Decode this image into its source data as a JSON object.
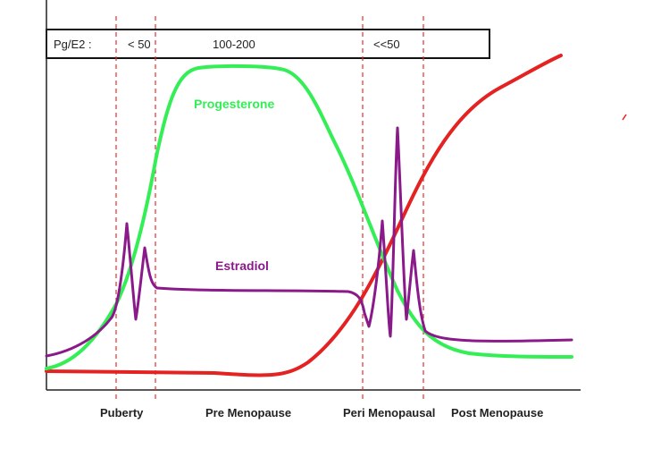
{
  "header": {
    "ratio_label": "Pg/E2 :",
    "ratios": {
      "puberty": "< 50",
      "pre": "100-200",
      "peri": "<<50"
    }
  },
  "curves": {
    "progesterone": {
      "label": "Progesterone",
      "color": "#33ee55"
    },
    "estradiol": {
      "label": "Estradiol",
      "color": "#8a1a8a"
    },
    "fsh_like": {
      "color": "#e52222"
    }
  },
  "phases": {
    "puberty": "Puberty",
    "pre": "Pre Menopause",
    "peri": "Peri Menopausal",
    "post": "Post Menopause"
  },
  "colors": {
    "divider": "#e03030",
    "axis": "#222222",
    "box_border": "#111111"
  }
}
